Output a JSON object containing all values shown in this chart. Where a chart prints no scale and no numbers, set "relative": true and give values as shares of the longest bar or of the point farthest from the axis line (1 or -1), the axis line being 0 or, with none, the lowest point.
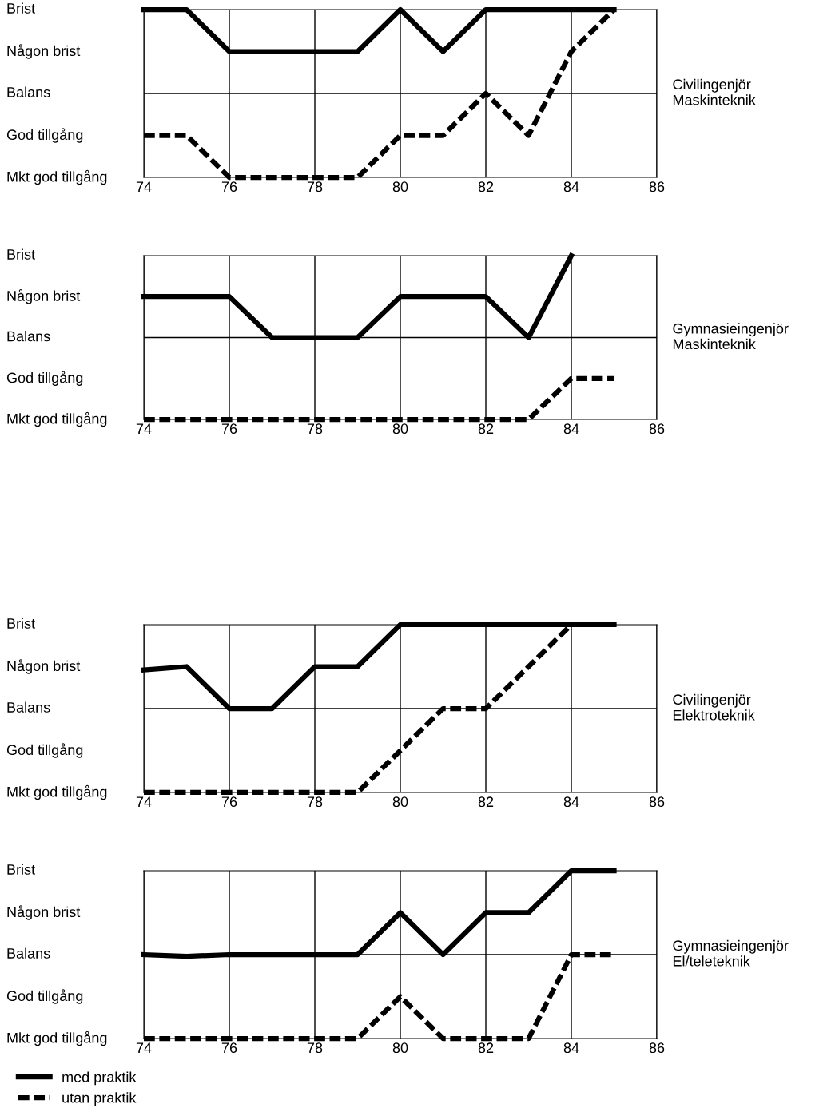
{
  "chart_data": [
    {
      "type": "line",
      "relative": true,
      "y2label": "Civilingenjör\nMaskinteknik",
      "x": [
        74,
        75,
        76,
        77,
        78,
        79,
        80,
        81,
        82,
        83,
        84,
        85
      ],
      "xlim": [
        74,
        86
      ],
      "xticks": [
        74,
        76,
        78,
        80,
        82,
        84,
        86
      ],
      "grid": "x",
      "ref_lines": [
        {
          "axis": "y",
          "value": 0.5,
          "color": "#000000"
        }
      ],
      "legend": false,
      "annotations": [
        "Brist",
        "Någon brist",
        "Balans",
        "God tillgång",
        "Mkt god tillgång"
      ],
      "series": [
        {
          "color": "#000000",
          "line_style": "solid",
          "values": [
            1,
            1,
            0.75,
            0.75,
            0.75,
            0.75,
            1,
            0.75,
            1,
            1,
            1,
            1
          ]
        },
        {
          "color": "#000000",
          "line_style": "dashed",
          "values": [
            0.25,
            0.25,
            0,
            0,
            0,
            0,
            0.25,
            0.25,
            0.5,
            0.25,
            0.75,
            1
          ]
        }
      ]
    },
    {
      "type": "line",
      "relative": true,
      "y2label": "Gymnasieingenjör\nMaskinteknik",
      "x": [
        74,
        75,
        76,
        77,
        78,
        79,
        80,
        81,
        82,
        83,
        84,
        85
      ],
      "xlim": [
        74,
        86
      ],
      "xticks": [
        74,
        76,
        78,
        80,
        82,
        84,
        86
      ],
      "grid": "x",
      "ref_lines": [
        {
          "axis": "y",
          "value": 0.5,
          "color": "#000000"
        }
      ],
      "legend": false,
      "annotations": [
        "Brist",
        "Någon brist",
        "Balans",
        "God tillgång",
        "Mkt god tillgång"
      ],
      "series": [
        {
          "color": "#000000",
          "line_style": "solid",
          "values": [
            0.75,
            0.75,
            0.75,
            0.5,
            0.5,
            0.5,
            0.75,
            0.75,
            0.75,
            0.5,
            1,
            null
          ]
        },
        {
          "color": "#000000",
          "line_style": "dashed",
          "values": [
            0,
            0,
            0,
            0,
            0,
            0,
            0,
            0,
            0,
            0,
            0.25,
            0.25
          ]
        }
      ]
    },
    {
      "type": "line",
      "relative": true,
      "y2label": "Civilingenjör\nElektroteknik",
      "x": [
        74,
        75,
        76,
        77,
        78,
        79,
        80,
        81,
        82,
        83,
        84,
        85
      ],
      "xlim": [
        74,
        86
      ],
      "xticks": [
        74,
        76,
        78,
        80,
        82,
        84,
        86
      ],
      "grid": "x",
      "ref_lines": [
        {
          "axis": "y",
          "value": 0.5,
          "color": "#000000"
        }
      ],
      "legend": false,
      "annotations": [
        "Brist",
        "Någon brist",
        "Balans",
        "God tillgång",
        "Mkt god tillgång"
      ],
      "series": [
        {
          "color": "#000000",
          "line_style": "solid",
          "values": [
            0.73,
            0.75,
            0.5,
            0.5,
            0.75,
            0.75,
            1,
            1,
            1,
            1,
            1,
            1
          ]
        },
        {
          "color": "#000000",
          "line_style": "dashed",
          "values": [
            0,
            0,
            0,
            0,
            0,
            0,
            0.25,
            0.5,
            0.5,
            0.75,
            1,
            1
          ]
        }
      ]
    },
    {
      "type": "line",
      "relative": true,
      "y2label": "Gymnasieingenjör\nEl/teleteknik",
      "x": [
        74,
        75,
        76,
        77,
        78,
        79,
        80,
        81,
        82,
        83,
        84,
        85
      ],
      "xlim": [
        74,
        86
      ],
      "xticks": [
        74,
        76,
        78,
        80,
        82,
        84,
        86
      ],
      "grid": "x",
      "ref_lines": [
        {
          "axis": "y",
          "value": 0.5,
          "color": "#000000"
        }
      ],
      "legend": "bottom left",
      "annotations": [
        "Brist",
        "Någon brist",
        "Balans",
        "God tillgång",
        "Mkt god tillgång"
      ],
      "series": [
        {
          "name": "med praktik",
          "color": "#000000",
          "line_style": "solid",
          "values": [
            0.5,
            0.49,
            0.5,
            0.5,
            0.5,
            0.5,
            0.75,
            0.5,
            0.75,
            0.75,
            1,
            1
          ]
        },
        {
          "name": "utan praktik",
          "color": "#000000",
          "line_style": "dashed",
          "values": [
            0,
            0,
            0,
            0,
            0,
            0,
            0.25,
            0,
            0,
            0,
            0.5,
            0.5
          ]
        }
      ]
    }
  ]
}
